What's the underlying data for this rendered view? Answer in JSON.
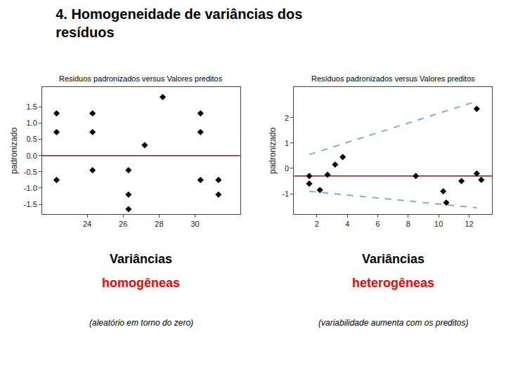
{
  "title": "4. Homogeneidade de variâncias dos\nresíduos",
  "chart_data": [
    {
      "type": "scatter",
      "title": "Residuos padronizados versus Valores preditos",
      "y_label": "padronizado",
      "xlim": [
        21.5,
        32.5
      ],
      "ylim": [
        -1.8,
        2.1
      ],
      "xticks": [
        24,
        26,
        28,
        30
      ],
      "yticks": [
        -1.5,
        {
          "value": -1.0,
          "label": "-1.0"
        },
        -0.5,
        {
          "value": 0.0,
          "label": "0.0"
        },
        0.5,
        {
          "value": 1.0,
          "label": "1.0"
        },
        1.5
      ],
      "grid": false,
      "reference_line": {
        "y": 0.0,
        "color": "#7B2020"
      },
      "series": [
        {
          "type": "scatter",
          "color": "black",
          "marker": "diamond",
          "x": [
            22.3,
            22.3,
            22.3,
            24.3,
            24.3,
            24.3,
            26.3,
            26.3,
            26.3,
            27.2,
            28.2,
            30.3,
            30.3,
            30.3,
            31.3,
            31.3
          ],
          "values": [
            1.3,
            0.72,
            -0.75,
            1.3,
            0.72,
            -0.45,
            -0.45,
            -1.65,
            -1.2,
            0.32,
            1.8,
            1.3,
            0.72,
            -0.75,
            -0.75,
            -1.2
          ]
        }
      ],
      "annotations": [
        {
          "text": "Variâncias",
          "color": "black"
        },
        {
          "text": "homogêneas",
          "color": "red"
        },
        {
          "text": "(aleatório em torno do zero)",
          "color": "black"
        }
      ]
    },
    {
      "type": "scatter",
      "title": "Resíduos padronizados versus Valores preditos",
      "y_label": "padronizado",
      "xlim": [
        0.5,
        13.5
      ],
      "ylim": [
        -1.8,
        3.2
      ],
      "xticks": [
        2,
        4,
        6,
        8,
        10,
        12
      ],
      "yticks": [
        -1,
        0,
        1,
        2
      ],
      "grid": false,
      "reference_line": {
        "y": -0.3,
        "color": "#7B2020"
      },
      "series": [
        {
          "type": "scatter",
          "color": "black",
          "marker": "diamond",
          "x": [
            1.5,
            1.5,
            2.2,
            2.7,
            3.2,
            3.7,
            8.5,
            10.3,
            10.5,
            11.5,
            12.5,
            12.5,
            12.8
          ],
          "values": [
            -0.3,
            -0.6,
            -0.85,
            -0.25,
            0.15,
            0.45,
            -0.3,
            -0.9,
            -1.35,
            -0.5,
            2.35,
            -0.2,
            -0.45
          ]
        },
        {
          "type": "line",
          "color": "#7ab0d4",
          "line_style": "dashed",
          "x": [
            1.5,
            12.5
          ],
          "values": [
            0.55,
            2.65
          ]
        },
        {
          "type": "line",
          "color": "#7ab0d4",
          "line_style": "dashed",
          "x": [
            1.5,
            12.5
          ],
          "values": [
            -0.9,
            -1.55
          ]
        }
      ],
      "annotations": [
        {
          "text": "Variâncias",
          "color": "black"
        },
        {
          "text": "heterogêneas",
          "color": "red"
        },
        {
          "text": "(variabilidade aumenta com os preditos)",
          "color": "black"
        }
      ]
    }
  ]
}
